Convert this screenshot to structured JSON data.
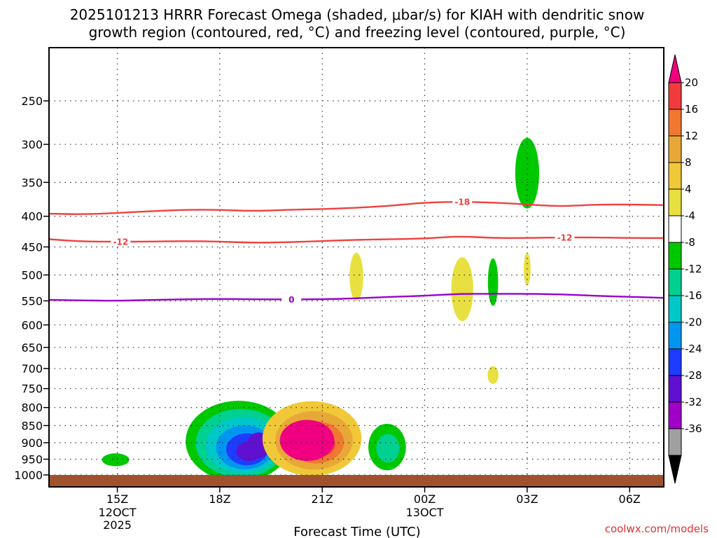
{
  "chart_data": {
    "type": "time-height",
    "title_line1": "2025101213 HRRR Forecast Omega (shaded, μbar/s) for KIAH with dendritic snow",
    "title_line2": "growth region (contoured, red, °C) and freezing level (contoured, purple, °C)",
    "xlabel": "Forecast Time (UTC)",
    "x_range_hours": [
      13,
      31
    ],
    "x_ticks": [
      {
        "hour": 15,
        "label": "15Z",
        "sub1": "12OCT",
        "sub2": "2025"
      },
      {
        "hour": 18,
        "label": "18Z",
        "sub1": "",
        "sub2": ""
      },
      {
        "hour": 21,
        "label": "21Z",
        "sub1": "",
        "sub2": ""
      },
      {
        "hour": 24,
        "label": "00Z",
        "sub1": "13OCT",
        "sub2": ""
      },
      {
        "hour": 27,
        "label": "03Z",
        "sub1": "",
        "sub2": ""
      },
      {
        "hour": 30,
        "label": "06Z",
        "sub1": "",
        "sub2": ""
      }
    ],
    "y_range_hpa": [
      1025,
      200
    ],
    "y_ticks": [
      250,
      300,
      350,
      400,
      450,
      500,
      550,
      600,
      650,
      700,
      750,
      800,
      850,
      900,
      950,
      1000
    ],
    "contours": [
      {
        "name": "-18C isotherm",
        "level": "-18",
        "color": "#f04040",
        "points": [
          [
            13,
            396
          ],
          [
            14,
            397
          ],
          [
            15,
            395
          ],
          [
            16,
            392
          ],
          [
            17,
            390
          ],
          [
            18,
            390
          ],
          [
            19,
            392
          ],
          [
            20,
            390
          ],
          [
            21,
            389
          ],
          [
            22,
            387
          ],
          [
            23,
            384
          ],
          [
            24,
            379
          ],
          [
            25,
            378
          ],
          [
            26,
            379
          ],
          [
            27,
            382
          ],
          [
            28,
            385
          ],
          [
            29,
            382
          ],
          [
            30,
            382
          ],
          [
            31,
            383
          ]
        ],
        "labels": [
          {
            "hour": 25.1,
            "hpa": 378
          }
        ]
      },
      {
        "name": "-12C isotherm",
        "level": "-12",
        "color": "#f04040",
        "points": [
          [
            13,
            437
          ],
          [
            14,
            441
          ],
          [
            15,
            441
          ],
          [
            16,
            441
          ],
          [
            17,
            440
          ],
          [
            18,
            441
          ],
          [
            19,
            443
          ],
          [
            20,
            442
          ],
          [
            21,
            440
          ],
          [
            22,
            438
          ],
          [
            23,
            437
          ],
          [
            24,
            436
          ],
          [
            25,
            432
          ],
          [
            26,
            435
          ],
          [
            27,
            435
          ],
          [
            28,
            434
          ],
          [
            29,
            434
          ],
          [
            30,
            435
          ],
          [
            31,
            435
          ]
        ],
        "labels": [
          {
            "hour": 15.1,
            "hpa": 441
          },
          {
            "hour": 28.1,
            "hpa": 434
          }
        ]
      },
      {
        "name": "0C freezing level",
        "level": "0",
        "color": "#9900cc",
        "points": [
          [
            13,
            548
          ],
          [
            14,
            549
          ],
          [
            15,
            550
          ],
          [
            16,
            548
          ],
          [
            17,
            547
          ],
          [
            18,
            546
          ],
          [
            19,
            547
          ],
          [
            20,
            547
          ],
          [
            21,
            547
          ],
          [
            22,
            545
          ],
          [
            23,
            542
          ],
          [
            24,
            540
          ],
          [
            25,
            536
          ],
          [
            26,
            536
          ],
          [
            27,
            536
          ],
          [
            28,
            537
          ],
          [
            29,
            540
          ],
          [
            30,
            542
          ],
          [
            31,
            544
          ]
        ],
        "labels": [
          {
            "hour": 20.1,
            "hpa": 547
          }
        ]
      }
    ],
    "omega_shading": [
      {
        "name": "ascent-cell-19Z",
        "center_hour": 18.55,
        "center_hpa": 902,
        "outer_half_width_h": 1.55,
        "outer_half_height_hpa": 120,
        "levels": [
          -8,
          -12,
          -16,
          -20,
          -24,
          -28
        ]
      },
      {
        "name": "descent-cell-20Z-22Z",
        "center_hour": 20.7,
        "center_hpa": 893,
        "outer_half_width_h": 1.45,
        "outer_half_height_hpa": 110,
        "levels": [
          8,
          12,
          16,
          20
        ]
      },
      {
        "name": "ascent-cell-23Z",
        "center_hour": 22.9,
        "center_hpa": 915,
        "outer_half_width_h": 0.55,
        "outer_half_height_hpa": 70,
        "levels": [
          -8,
          -12
        ]
      },
      {
        "name": "ascent-cell-15Z",
        "center_hour": 14.95,
        "center_hpa": 952,
        "outer_half_width_h": 0.4,
        "outer_half_height_hpa": 20,
        "levels": [
          -8
        ]
      },
      {
        "name": "ascent-cell-03Z-upper",
        "center_hour": 27.0,
        "center_hpa": 340,
        "outer_half_width_h": 0.35,
        "outer_half_height_hpa": 48,
        "levels": [
          -8
        ]
      },
      {
        "name": "ascent-cell-02Z",
        "center_hour": 26.0,
        "center_hpa": 515,
        "outer_half_width_h": 0.15,
        "outer_half_height_hpa": 45,
        "levels": [
          -8
        ]
      },
      {
        "name": "descent-cell-22Z",
        "center_hour": 22.0,
        "center_hpa": 505,
        "outer_half_width_h": 0.2,
        "outer_half_height_hpa": 45,
        "levels": [
          4
        ]
      },
      {
        "name": "descent-cell-01Z",
        "center_hour": 25.1,
        "center_hpa": 530,
        "outer_half_width_h": 0.32,
        "outer_half_height_hpa": 62,
        "levels": [
          4
        ]
      },
      {
        "name": "descent-cell-03Z",
        "center_hour": 27.0,
        "center_hpa": 490,
        "outer_half_width_h": 0.1,
        "outer_half_height_hpa": 30,
        "levels": [
          4
        ]
      },
      {
        "name": "descent-cell-02Z-low",
        "center_hour": 26.0,
        "center_hpa": 716,
        "outer_half_width_h": 0.16,
        "outer_half_height_hpa": 22,
        "levels": [
          4
        ]
      }
    ],
    "surface": {
      "color": "#a0522d",
      "label": "ground"
    },
    "colorbar": {
      "units": "μbar/s",
      "labels": [
        "20",
        "16",
        "12",
        "8",
        "4",
        "-4",
        "-8",
        "-12",
        "-16",
        "-20",
        "-24",
        "-28",
        "-32",
        "-36"
      ],
      "bands": [
        {
          "value": "20+",
          "color": "#f00080"
        },
        {
          "value": "16-20",
          "color": "#f03c3c"
        },
        {
          "value": "12-16",
          "color": "#f07830"
        },
        {
          "value": "8-12",
          "color": "#e8a838"
        },
        {
          "value": "4-8",
          "color": "#f0c838"
        },
        {
          "value": "0-4",
          "color": "#e8e040"
        },
        {
          "value": "-4-4",
          "color": "#ffffff"
        },
        {
          "value": "-8--4",
          "color": "#00c800"
        },
        {
          "value": "-12--8",
          "color": "#00d090"
        },
        {
          "value": "-16--12",
          "color": "#00c8c8"
        },
        {
          "value": "-20--16",
          "color": "#0096f0"
        },
        {
          "value": "-24--20",
          "color": "#1e3cff"
        },
        {
          "value": "-28--24",
          "color": "#6010d0"
        },
        {
          "value": "-32--28",
          "color": "#a000c8"
        },
        {
          "value": "-36--32",
          "color": "#a0a0a0"
        },
        {
          "value": "<-36",
          "color": "#000000"
        }
      ]
    }
  },
  "credit": "coolwx.com/models"
}
